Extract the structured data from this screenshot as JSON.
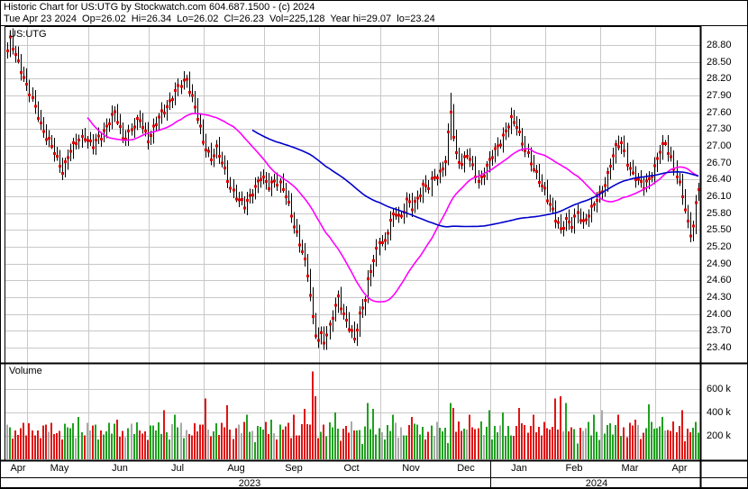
{
  "header": {
    "title": "Historic Chart for US:UTG by Stockwatch.com 604.687.1500 - (c) 2024",
    "quote": {
      "date": "Tue Apr 23 2024",
      "fields": [
        "Op=26.02",
        "Hi=26.34",
        "Lo=26.02",
        "Cl=26.23",
        "Vol=225,128",
        "Year hi=29.07",
        "lo=23.24"
      ]
    }
  },
  "colors": {
    "grid": "#c8c8c8",
    "border": "#000000",
    "price_bar": "#000000",
    "close_tick": "#dd0000",
    "ma_short": "#ff00ff",
    "ma_long": "#0000cc",
    "volume_up": "#1fa01f",
    "volume_down": "#e01212",
    "volume_flat": "#a9a9a9",
    "background": "#ffffff"
  },
  "chart_data": [
    {
      "type": "ohlc",
      "title": "US:UTG",
      "ylabel_side": "right",
      "ylim": [
        23.12,
        29.14
      ],
      "y_tick_step": 0.3,
      "y_ticks": [
        "28.80",
        "28.50",
        "28.20",
        "27.90",
        "27.60",
        "27.30",
        "27.00",
        "26.70",
        "26.40",
        "26.10",
        "25.80",
        "25.50",
        "25.20",
        "24.90",
        "24.60",
        "24.30",
        "24.00",
        "23.70",
        "23.40"
      ],
      "x_months": [
        "Apr",
        "May",
        "Jun",
        "Jul",
        "Aug",
        "Sep",
        "Oct",
        "Nov",
        "Dec",
        "Jan",
        "Feb",
        "Mar",
        "Apr"
      ],
      "month_start_bars": [
        0,
        8,
        30,
        52,
        72,
        94,
        114,
        136,
        157,
        176,
        196,
        216,
        236
      ],
      "total_bars": 252,
      "years": [
        {
          "label": "2023",
          "start_bar": 0
        },
        {
          "label": "2024",
          "start_bar": 176
        }
      ],
      "year_high": 29.07,
      "year_low": 23.24,
      "last_bar": {
        "date": "Tue Apr 23 2024",
        "open": 26.02,
        "high": 26.34,
        "low": 26.02,
        "close": 26.23,
        "volume": 225128
      },
      "spike_bar": {
        "index": 161,
        "high": 27.95
      },
      "moving_averages": [
        {
          "name": "short-ma",
          "window": 30,
          "color": "#ff00ff"
        },
        {
          "name": "long-ma",
          "window": 90,
          "color": "#0000cc"
        }
      ],
      "close_anchors": [
        [
          0,
          28.7
        ],
        [
          1,
          28.88
        ],
        [
          3,
          28.6
        ],
        [
          5,
          28.4
        ],
        [
          7,
          28.1
        ],
        [
          9,
          27.8
        ],
        [
          12,
          27.4
        ],
        [
          15,
          27.1
        ],
        [
          18,
          26.75
        ],
        [
          20,
          26.58
        ],
        [
          22,
          26.85
        ],
        [
          25,
          27.05
        ],
        [
          28,
          27.2
        ],
        [
          31,
          27.0
        ],
        [
          34,
          27.18
        ],
        [
          37,
          27.48
        ],
        [
          39,
          27.58
        ],
        [
          42,
          27.15
        ],
        [
          45,
          27.32
        ],
        [
          48,
          27.45
        ],
        [
          51,
          27.15
        ],
        [
          54,
          27.4
        ],
        [
          57,
          27.65
        ],
        [
          60,
          27.9
        ],
        [
          63,
          28.08
        ],
        [
          65,
          28.2
        ],
        [
          67,
          27.9
        ],
        [
          69,
          27.5
        ],
        [
          71,
          27.05
        ],
        [
          74,
          26.82
        ],
        [
          76,
          26.95
        ],
        [
          79,
          26.55
        ],
        [
          81,
          26.3
        ],
        [
          84,
          26.02
        ],
        [
          86,
          25.92
        ],
        [
          89,
          26.22
        ],
        [
          92,
          26.42
        ],
        [
          95,
          26.3
        ],
        [
          97,
          26.42
        ],
        [
          99,
          26.3
        ],
        [
          101,
          26.1
        ],
        [
          103,
          25.8
        ],
        [
          105,
          25.45
        ],
        [
          107,
          25.1
        ],
        [
          109,
          24.7
        ],
        [
          110,
          24.35
        ],
        [
          111,
          23.95
        ],
        [
          112,
          23.7
        ],
        [
          113,
          23.55
        ],
        [
          114,
          23.62
        ],
        [
          115,
          23.5
        ],
        [
          116,
          23.58
        ],
        [
          118,
          24.0
        ],
        [
          120,
          24.35
        ],
        [
          122,
          23.95
        ],
        [
          124,
          23.75
        ],
        [
          126,
          23.6
        ],
        [
          128,
          24.0
        ],
        [
          130,
          24.25
        ],
        [
          131,
          24.55
        ],
        [
          133,
          25.0
        ],
        [
          135,
          25.35
        ],
        [
          137,
          25.25
        ],
        [
          139,
          25.65
        ],
        [
          141,
          25.85
        ],
        [
          143,
          25.75
        ],
        [
          145,
          26.0
        ],
        [
          147,
          25.9
        ],
        [
          149,
          26.1
        ],
        [
          151,
          26.3
        ],
        [
          153,
          26.25
        ],
        [
          155,
          26.45
        ],
        [
          157,
          26.55
        ],
        [
          159,
          26.75
        ],
        [
          161,
          27.6
        ],
        [
          162,
          27.15
        ],
        [
          163,
          26.85
        ],
        [
          165,
          26.72
        ],
        [
          167,
          26.85
        ],
        [
          169,
          26.6
        ],
        [
          171,
          26.38
        ],
        [
          173,
          26.55
        ],
        [
          175,
          26.72
        ],
        [
          177,
          26.9
        ],
        [
          179,
          27.1
        ],
        [
          181,
          27.3
        ],
        [
          183,
          27.45
        ],
        [
          185,
          27.35
        ],
        [
          187,
          27.1
        ],
        [
          189,
          26.85
        ],
        [
          191,
          26.55
        ],
        [
          193,
          26.4
        ],
        [
          195,
          26.25
        ],
        [
          197,
          25.95
        ],
        [
          199,
          25.68
        ],
        [
          201,
          25.52
        ],
        [
          203,
          25.72
        ],
        [
          205,
          25.58
        ],
        [
          207,
          25.78
        ],
        [
          209,
          25.65
        ],
        [
          211,
          25.82
        ],
        [
          213,
          25.95
        ],
        [
          215,
          26.1
        ],
        [
          217,
          26.35
        ],
        [
          219,
          26.7
        ],
        [
          221,
          26.95
        ],
        [
          223,
          27.05
        ],
        [
          225,
          26.75
        ],
        [
          227,
          26.5
        ],
        [
          229,
          26.35
        ],
        [
          231,
          26.3
        ],
        [
          233,
          26.45
        ],
        [
          235,
          26.6
        ],
        [
          237,
          26.9
        ],
        [
          239,
          27.08
        ],
        [
          241,
          26.8
        ],
        [
          243,
          26.45
        ],
        [
          245,
          26.1
        ],
        [
          247,
          25.65
        ],
        [
          248,
          25.48
        ],
        [
          249,
          25.6
        ],
        [
          250,
          25.95
        ],
        [
          251,
          26.23
        ]
      ]
    },
    {
      "type": "bar",
      "title": "Volume",
      "ylabel_side": "right",
      "y_ticks": [
        {
          "label": "600 k",
          "value": 600000
        },
        {
          "label": "400 k",
          "value": 400000
        },
        {
          "label": "200 k",
          "value": 200000
        }
      ],
      "volume_spikes": [
        [
          26,
          360000
        ],
        [
          40,
          340000
        ],
        [
          57,
          420000
        ],
        [
          61,
          380000
        ],
        [
          72,
          520000
        ],
        [
          80,
          460000
        ],
        [
          87,
          380000
        ],
        [
          96,
          340000
        ],
        [
          104,
          380000
        ],
        [
          108,
          430000
        ],
        [
          111,
          750000
        ],
        [
          112,
          540000
        ],
        [
          119,
          400000
        ],
        [
          131,
          480000
        ],
        [
          133,
          430000
        ],
        [
          140,
          380000
        ],
        [
          147,
          360000
        ],
        [
          161,
          480000
        ],
        [
          162,
          440000
        ],
        [
          168,
          380000
        ],
        [
          175,
          420000
        ],
        [
          180,
          400000
        ],
        [
          186,
          440000
        ],
        [
          191,
          380000
        ],
        [
          199,
          520000
        ],
        [
          201,
          540000
        ],
        [
          203,
          480000
        ],
        [
          213,
          380000
        ],
        [
          216,
          420000
        ],
        [
          222,
          380000
        ],
        [
          228,
          340000
        ],
        [
          233,
          470000
        ],
        [
          238,
          360000
        ],
        [
          245,
          420000
        ],
        [
          251,
          225128
        ]
      ]
    }
  ]
}
